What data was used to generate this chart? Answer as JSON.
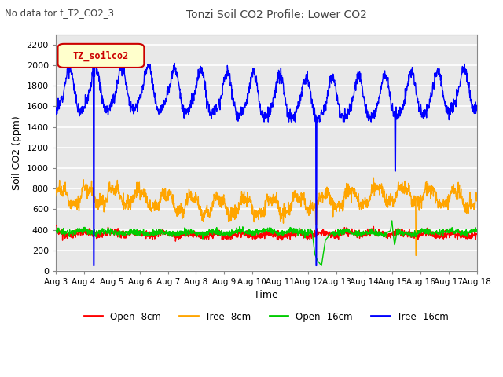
{
  "title": "Tonzi Soil CO2 Profile: Lower CO2",
  "subtitle": "No data for f_T2_CO2_3",
  "ylabel": "Soil CO2 (ppm)",
  "xlabel": "Time",
  "legend_label": "TZ_soilco2",
  "legend_entries": [
    "Open -8cm",
    "Tree -8cm",
    "Open -16cm",
    "Tree -16cm"
  ],
  "legend_colors": [
    "#ff0000",
    "#ffa500",
    "#00cc00",
    "#0000ff"
  ],
  "ylim": [
    0,
    2300
  ],
  "yticks": [
    0,
    200,
    400,
    600,
    800,
    1000,
    1200,
    1400,
    1600,
    1800,
    2000,
    2200
  ],
  "xtick_labels": [
    "Aug 3",
    "Aug 4",
    "Aug 5",
    "Aug 6",
    "Aug 7",
    "Aug 8",
    "Aug 9",
    "Aug 10",
    "Aug 11",
    "Aug 12",
    "Aug 13",
    "Aug 14",
    "Aug 15",
    "Aug 16",
    "Aug 17",
    "Aug 18"
  ],
  "bg_color": "#e8e8e8",
  "grid_color": "#ffffff",
  "line_width": 1.0,
  "blue_dropout_day1": 1.45,
  "blue_dropout_day2": 9.9,
  "blue_dropout_day3": 12.9,
  "orange_dropout_day1": 9.9,
  "orange_dropout_day2": 13.7,
  "green_dropout_day1": 9.9,
  "green_dropout_day2": 12.75
}
